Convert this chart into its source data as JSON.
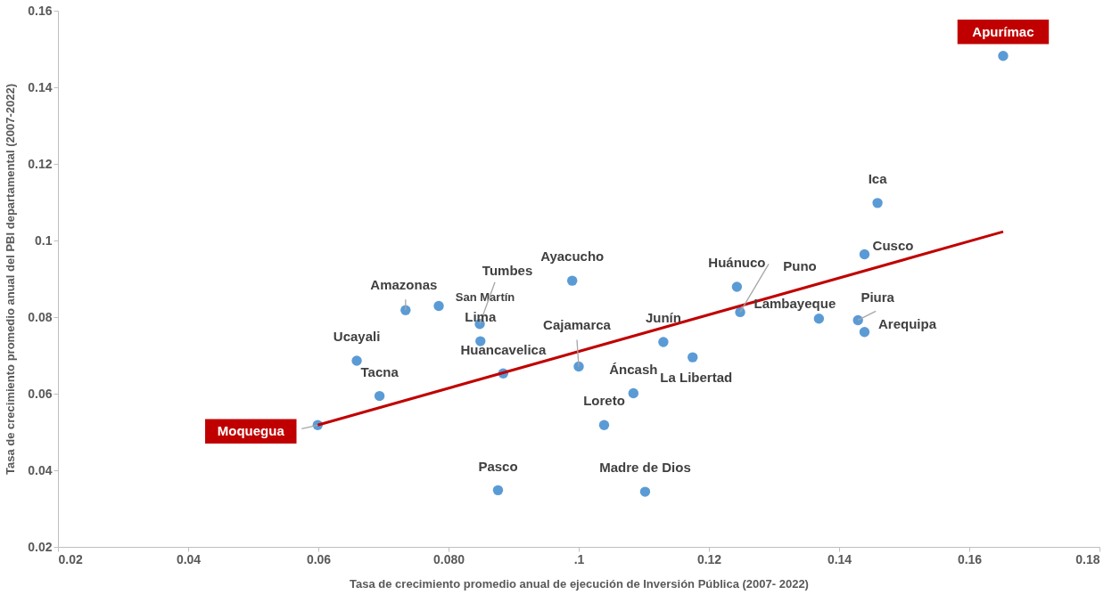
{
  "chart_data": {
    "type": "scatter",
    "xlabel": "Tasa de crecimiento promedio anual de ejecución de Inversión Pública (2007- 2022)",
    "ylabel": "Tasa de crecimiento promedio anual del PBI departamental (2007-2022)",
    "xlim": [
      0.02,
      0.18
    ],
    "xticks": [
      0.02,
      0.04,
      0.06,
      {
        "value": 0.08,
        "label": "0.080"
      },
      {
        "value": 0.1,
        "label": ".1"
      },
      0.12,
      0.14,
      0.16,
      0.18
    ],
    "ylim": [
      0.02,
      0.16
    ],
    "yticks": [
      0.02,
      0.04,
      0.06,
      0.08,
      {
        "value": 0.1,
        "label": "0.1"
      },
      0.12,
      0.14,
      0.16
    ],
    "grid": false,
    "series": [
      {
        "marker": "circle",
        "color": "#5b9bd5",
        "x": [
          0.0599,
          0.0659,
          0.0694,
          0.0734,
          0.0785,
          0.0848,
          0.0849,
          0.0884,
          0.099,
          0.1,
          0.0876,
          0.1039,
          0.1084,
          0.1102,
          0.113,
          0.1175,
          0.1243,
          0.1248,
          0.1369,
          0.1429,
          0.1439,
          0.1439,
          0.1459,
          0.1652
        ],
        "values": [
          0.0518,
          0.0686,
          0.0594,
          0.0818,
          0.0829,
          0.0782,
          0.0737,
          0.0653,
          0.0895,
          0.0671,
          0.0348,
          0.0518,
          0.0601,
          0.0344,
          0.0735,
          0.0695,
          0.0879,
          0.0813,
          0.0796,
          0.0792,
          0.0761,
          0.0964,
          0.1098,
          0.1482
        ]
      },
      {
        "type": "line",
        "color": "#c00000",
        "line_style": "solid",
        "x": [
          0.0599,
          0.1652
        ],
        "values": [
          0.0518,
          0.1023
        ]
      }
    ],
    "annotations": [
      {
        "text": "Moquegua",
        "x": 0.0599,
        "y": 0.0518
      },
      {
        "text": "Ucayali",
        "x": 0.0659,
        "y": 0.0686
      },
      {
        "text": "Tacna",
        "x": 0.0694,
        "y": 0.0594
      },
      {
        "text": "Amazonas",
        "x": 0.0734,
        "y": 0.0818
      },
      {
        "text": "San Martín",
        "x": 0.0785,
        "y": 0.0829
      },
      {
        "text": "Tumbes",
        "x": 0.0848,
        "y": 0.0782
      },
      {
        "text": "Lima",
        "x": 0.0849,
        "y": 0.0737
      },
      {
        "text": "Huancavelica",
        "x": 0.0884,
        "y": 0.0653
      },
      {
        "text": "Ayacucho",
        "x": 0.099,
        "y": 0.0895
      },
      {
        "text": "Cajamarca",
        "x": 0.1,
        "y": 0.0671
      },
      {
        "text": "Pasco",
        "x": 0.0876,
        "y": 0.0348
      },
      {
        "text": "Loreto",
        "x": 0.1039,
        "y": 0.0518
      },
      {
        "text": "Áncash",
        "x": 0.1084,
        "y": 0.0601
      },
      {
        "text": "Madre de Dios",
        "x": 0.1102,
        "y": 0.0344
      },
      {
        "text": "Junín",
        "x": 0.113,
        "y": 0.0735
      },
      {
        "text": "La Libertad",
        "x": 0.1175,
        "y": 0.0695
      },
      {
        "text": "Huánuco",
        "x": 0.1243,
        "y": 0.0879
      },
      {
        "text": "Puno",
        "x": 0.1248,
        "y": 0.0813
      },
      {
        "text": "Lambayeque",
        "x": 0.1369,
        "y": 0.0796
      },
      {
        "text": "Piura",
        "x": 0.1429,
        "y": 0.0792
      },
      {
        "text": "Arequipa",
        "x": 0.1439,
        "y": 0.0761
      },
      {
        "text": "Cusco",
        "x": 0.1439,
        "y": 0.0964
      },
      {
        "text": "Ica",
        "x": 0.1459,
        "y": 0.1098
      },
      {
        "text": "Apurímac",
        "x": 0.1652,
        "y": 0.1482
      }
    ]
  }
}
